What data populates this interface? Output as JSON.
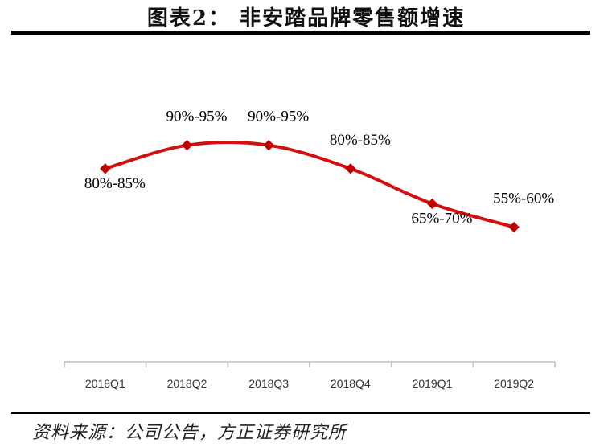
{
  "figure_title": "图表2：  非安踏品牌零售额增速",
  "source_note": "资料来源：公司公告，方正证券研究所",
  "colors": {
    "line": "#d40f0f",
    "marker": "#c00000",
    "axis": "#bfbfbf",
    "text": "#000000",
    "tick_text": "#333333"
  },
  "chart_data": {
    "type": "line",
    "title": "",
    "xlabel": "",
    "ylabel": "",
    "categories": [
      "2018Q1",
      "2018Q2",
      "2018Q3",
      "2018Q4",
      "2019Q1",
      "2019Q2"
    ],
    "values": [
      82.5,
      92.5,
      92.5,
      82.5,
      67.5,
      57.5
    ],
    "data_labels": [
      "80%-85%",
      "90%-95%",
      "90%-95%",
      "80%-85%",
      "65%-70%",
      "55%-60%"
    ],
    "data_label_positions": [
      "below",
      "above",
      "above",
      "above",
      "below",
      "above"
    ],
    "ylim": [
      0,
      130
    ],
    "yaxis_visible": false,
    "grid": false,
    "legend": "none",
    "smooth": true
  }
}
